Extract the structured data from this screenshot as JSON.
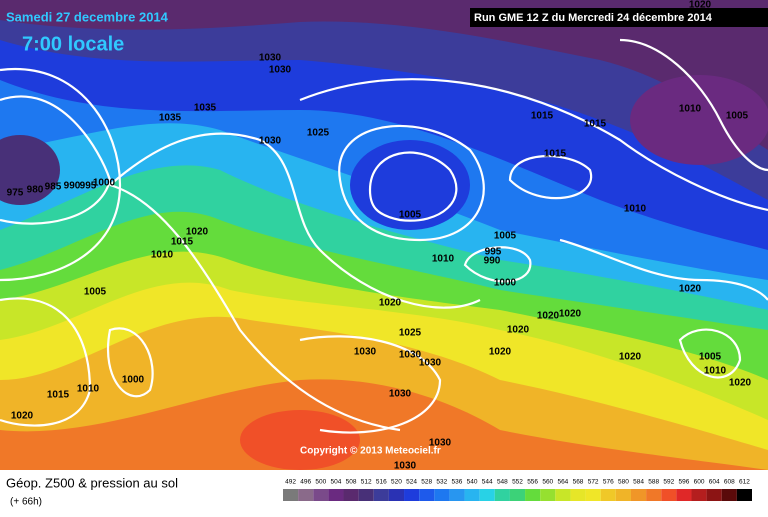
{
  "header": {
    "date": "Samedi 27 decembre 2014",
    "time": "7:00 locale",
    "run": "Run GME 12 Z du Mercredi 24 décembre 2014"
  },
  "copyright": "Copyright © 2013 Meteociel.fr",
  "footer": {
    "title": "Géop. Z500 & pression au sol",
    "lead": "(+ 66h)"
  },
  "isobar_labels": [
    "1020",
    "1030",
    "1030",
    "1035",
    "1035",
    "1030",
    "1025",
    "1015",
    "1015",
    "1015",
    "1010",
    "1005",
    "975",
    "980",
    "985",
    "990",
    "995",
    "1000",
    "1005",
    "1010",
    "1020",
    "1015",
    "1010",
    "1005",
    "1005",
    "995",
    "990",
    "1000",
    "1010",
    "1020",
    "1020",
    "1020",
    "1020",
    "1020",
    "1025",
    "1030",
    "1030",
    "1030",
    "1020",
    "1020",
    "1005",
    "1010",
    "1020",
    "1000",
    "1010",
    "1015",
    "1020",
    "1030",
    "1030",
    "1030"
  ],
  "colorbar": {
    "values": [
      492,
      496,
      500,
      504,
      508,
      512,
      516,
      520,
      524,
      528,
      532,
      536,
      540,
      544,
      548,
      552,
      556,
      560,
      564,
      568,
      572,
      576,
      580,
      584,
      588,
      592,
      596,
      600,
      604,
      608,
      612
    ],
    "colors": [
      "#7a7a7a",
      "#8a6a8a",
      "#7a4a8a",
      "#6a2a80",
      "#5a2a6e",
      "#483078",
      "#3c3c9a",
      "#2a32b4",
      "#1e3cdc",
      "#1e5aeb",
      "#1e78f0",
      "#2896f0",
      "#28b4f0",
      "#28d2e6",
      "#30d2a0",
      "#3cd278",
      "#64dc3c",
      "#96e030",
      "#c8e628",
      "#e6e628",
      "#f0e628",
      "#f0c828",
      "#f0b428",
      "#f09628",
      "#f07828",
      "#f05028",
      "#e02828",
      "#b41e1e",
      "#8c1414",
      "#5a0a0a",
      "#000000"
    ]
  }
}
